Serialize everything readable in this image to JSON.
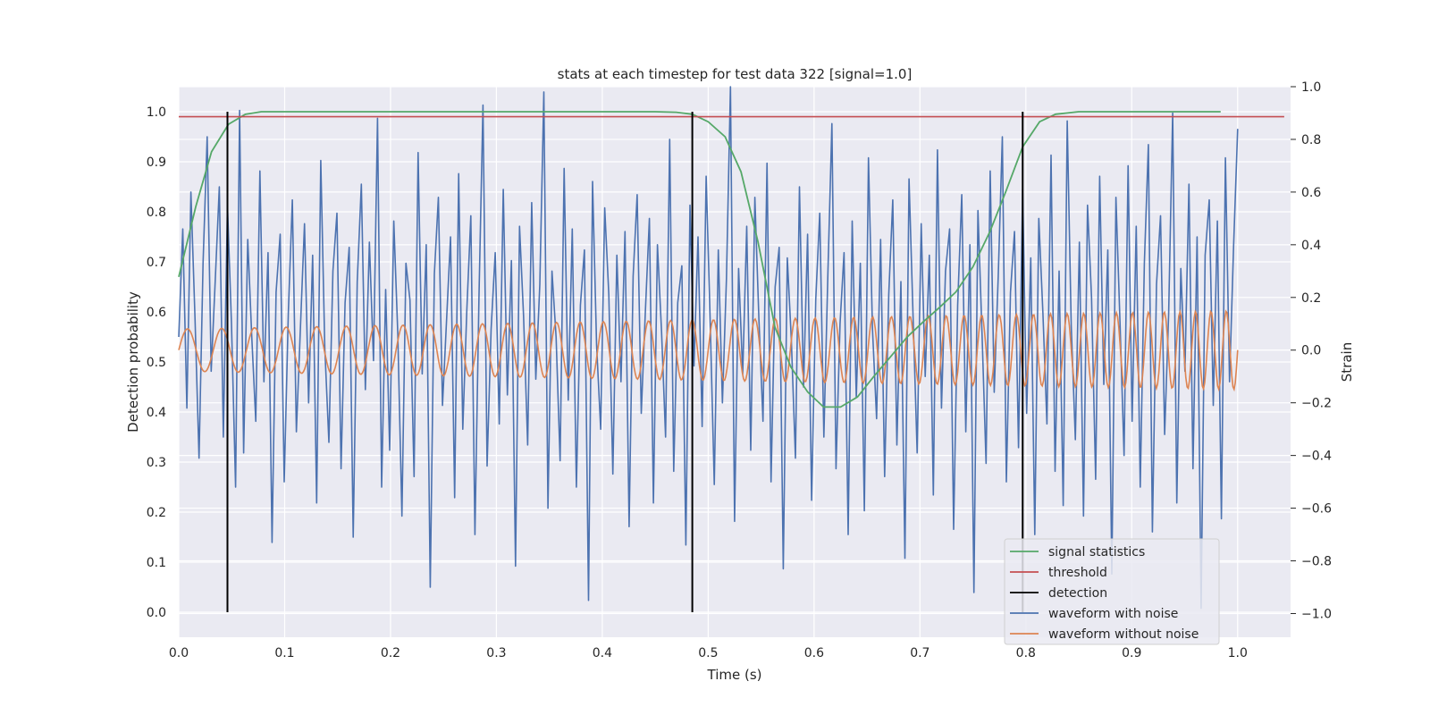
{
  "chart_data": {
    "type": "line",
    "title": "stats at each timestep for test data 322 [signal=1.0]",
    "xlabel": "Time (s)",
    "ylabel": "Detection probability",
    "ylabel_right": "Strain",
    "xlim": [
      0.0,
      1.05
    ],
    "ylim": [
      -0.05,
      1.05
    ],
    "ylim_right": [
      -1.09,
      1.0
    ],
    "x_ticks": [
      "0.0",
      "0.1",
      "0.2",
      "0.3",
      "0.4",
      "0.5",
      "0.6",
      "0.7",
      "0.8",
      "0.9",
      "1.0"
    ],
    "y_ticks": [
      "0.0",
      "0.1",
      "0.2",
      "0.3",
      "0.4",
      "0.5",
      "0.6",
      "0.7",
      "0.8",
      "0.9",
      "1.0"
    ],
    "y_right_ticks": [
      "−1.0",
      "−0.8",
      "−0.6",
      "−0.4",
      "−0.2",
      "0.0",
      "0.2",
      "0.4",
      "0.6",
      "0.8",
      "1.0"
    ],
    "grid": true,
    "legend_position": "lower-right",
    "colors": {
      "background": "#eaeaf2",
      "signal_statistics": "#55a868",
      "threshold": "#c44e52",
      "detection": "#000000",
      "waveform_with_noise": "#4c72b0",
      "waveform_without_noise": "#dd8452"
    },
    "series": [
      {
        "name": "signal statistics",
        "axis": "left",
        "x": [
          0.0,
          0.016,
          0.031,
          0.047,
          0.063,
          0.078,
          0.1,
          0.2,
          0.3,
          0.4,
          0.45,
          0.47,
          0.485,
          0.5,
          0.516,
          0.531,
          0.547,
          0.563,
          0.578,
          0.594,
          0.609,
          0.625,
          0.641,
          0.656,
          0.672,
          0.688,
          0.703,
          0.719,
          0.734,
          0.75,
          0.766,
          0.781,
          0.797,
          0.813,
          0.828,
          0.85,
          0.9,
          0.95,
          0.984
        ],
        "values": [
          0.67,
          0.81,
          0.92,
          0.975,
          0.995,
          1.0,
          1.0,
          1.0,
          1.0,
          1.0,
          1.0,
          0.999,
          0.995,
          0.98,
          0.95,
          0.88,
          0.74,
          0.57,
          0.49,
          0.44,
          0.41,
          0.41,
          0.43,
          0.47,
          0.51,
          0.55,
          0.58,
          0.61,
          0.64,
          0.69,
          0.76,
          0.84,
          0.93,
          0.98,
          0.995,
          1.0,
          1.0,
          1.0,
          1.0
        ]
      },
      {
        "name": "threshold",
        "axis": "left",
        "x": [
          0.0,
          1.044
        ],
        "values": [
          0.99,
          0.99
        ]
      },
      {
        "name": "detection",
        "axis": "left",
        "x_positions": [
          0.046,
          0.485,
          0.797
        ],
        "y_range": [
          0.0,
          1.0
        ]
      },
      {
        "name": "waveform with noise",
        "axis": "right",
        "x_range": [
          0.0,
          1.0
        ],
        "values": [
          0.05,
          0.46,
          -0.22,
          0.6,
          0.12,
          -0.41,
          0.33,
          0.81,
          -0.08,
          0.27,
          0.62,
          -0.33,
          0.55,
          0.1,
          -0.52,
          0.91,
          -0.39,
          0.42,
          0.05,
          -0.27,
          0.68,
          -0.12,
          0.37,
          -0.73,
          0.22,
          0.44,
          -0.5,
          0.14,
          0.57,
          -0.31,
          0.09,
          0.48,
          -0.2,
          0.36,
          -0.58,
          0.72,
          0.01,
          -0.35,
          0.3,
          0.52,
          -0.45,
          0.18,
          0.39,
          -0.71,
          0.26,
          0.63,
          -0.15,
          0.41,
          -0.04,
          0.88,
          -0.52,
          0.23,
          -0.38,
          0.49,
          0.06,
          -0.63,
          0.33,
          0.19,
          -0.48,
          0.75,
          -0.09,
          0.4,
          -0.9,
          0.29,
          0.58,
          -0.21,
          0.11,
          0.43,
          -0.56,
          0.67,
          -0.3,
          0.15,
          0.51,
          -0.7,
          0.2,
          0.93,
          -0.44,
          0.08,
          0.37,
          -0.28,
          0.61,
          -0.17,
          0.34,
          -0.82,
          0.47,
          0.13,
          -0.36,
          0.56,
          -0.11,
          0.25,
          0.98,
          -0.6,
          0.3,
          0.05,
          -0.42,
          0.69,
          -0.19,
          0.46,
          -0.52,
          0.17,
          0.38,
          -0.95,
          0.64,
          0.02,
          -0.3,
          0.54,
          0.21,
          -0.47,
          0.36,
          -0.12,
          0.45,
          -0.67,
          0.28,
          0.59,
          -0.24,
          0.14,
          0.5,
          -0.58,
          0.4,
          0.07,
          -0.33,
          0.8,
          -0.46,
          0.18,
          0.32,
          -0.74,
          0.55,
          -0.06,
          0.43,
          -0.29,
          0.66,
          0.1,
          -0.51,
          0.38,
          -0.2,
          0.27,
          1.0,
          -0.65,
          0.31,
          -0.09,
          0.47,
          -0.38,
          0.58,
          0.12,
          -0.27,
          0.71,
          -0.5,
          0.24,
          0.39,
          -0.83,
          0.35,
          0.04,
          -0.41,
          0.62,
          -0.14,
          0.44,
          -0.57,
          0.19,
          0.52,
          -0.33,
          0.29,
          0.86,
          -0.45,
          0.1,
          0.37,
          -0.7,
          0.49,
          -0.18,
          0.33,
          -0.61,
          0.73,
          0.08,
          -0.26,
          0.42,
          -0.48,
          0.21,
          0.57,
          -0.36,
          0.26,
          -0.79,
          0.65,
          0.13,
          -0.39,
          0.48,
          -0.1,
          0.36,
          -0.55,
          0.76,
          -0.22,
          0.3,
          0.46,
          -0.68,
          0.17,
          0.59,
          -0.31,
          0.4,
          -0.92,
          0.53,
          0.06,
          -0.43,
          0.68,
          -0.16,
          0.28,
          0.81,
          -0.5,
          0.22,
          0.45,
          -0.37,
          0.61,
          -0.24,
          0.35,
          -0.7,
          0.5,
          0.14,
          -0.28,
          0.74,
          -0.46,
          0.3,
          -0.59,
          0.87,
          0.09,
          -0.34,
          0.41,
          -0.63,
          0.55,
          0.2,
          -0.49,
          0.66,
          -0.13,
          0.38,
          -0.85,
          0.58,
          0.11,
          -0.4,
          0.7,
          -0.27,
          0.47,
          -0.52,
          0.33,
          0.78,
          -0.69,
          0.25,
          0.51,
          -0.32,
          0.14,
          0.9,
          -0.58,
          0.31,
          -0.08,
          0.63,
          -0.45,
          0.43,
          -0.98,
          0.36,
          0.57,
          -0.21,
          0.49,
          -0.64,
          0.73,
          -0.12,
          0.39,
          0.84
        ]
      },
      {
        "name": "waveform without noise",
        "axis": "right",
        "x_range": [
          0.0,
          1.0
        ],
        "chirp": {
          "amp_start": 0.08,
          "amp_end": 0.15,
          "cycles_start": 30,
          "cycles_end": 70
        }
      }
    ]
  }
}
